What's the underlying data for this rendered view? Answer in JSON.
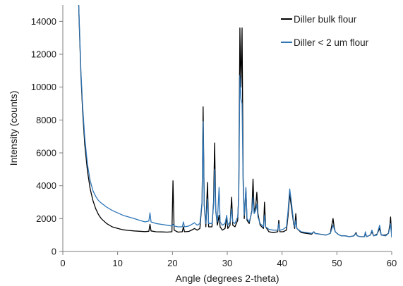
{
  "chart_data": {
    "type": "line",
    "title": "",
    "xlabel": "Angle (degrees 2-theta)",
    "ylabel": "Intensity (counts)",
    "xlim": [
      0,
      60
    ],
    "ylim": [
      0,
      15000
    ],
    "x_ticks": [
      0,
      10,
      20,
      30,
      40,
      50,
      60
    ],
    "y_ticks": [
      0,
      2000,
      4000,
      6000,
      8000,
      10000,
      12000,
      14000
    ],
    "grid": false,
    "legend_position": "top-right",
    "series": [
      {
        "name": "Diller bulk flour",
        "color": "#000000",
        "points": [
          [
            2.9,
            15000
          ],
          [
            3.0,
            13800
          ],
          [
            3.3,
            10800
          ],
          [
            3.6,
            8600
          ],
          [
            4.0,
            6500
          ],
          [
            4.5,
            4900
          ],
          [
            5.0,
            3800
          ],
          [
            5.5,
            3100
          ],
          [
            6.0,
            2600
          ],
          [
            6.5,
            2250
          ],
          [
            7.0,
            2000
          ],
          [
            8.0,
            1700
          ],
          [
            9.0,
            1500
          ],
          [
            10.0,
            1400
          ],
          [
            11.0,
            1320
          ],
          [
            12.0,
            1280
          ],
          [
            13.0,
            1250
          ],
          [
            14.0,
            1230
          ],
          [
            15.0,
            1210
          ],
          [
            15.7,
            1230
          ],
          [
            15.9,
            1650
          ],
          [
            16.1,
            1250
          ],
          [
            17.0,
            1200
          ],
          [
            18.0,
            1190
          ],
          [
            19.0,
            1180
          ],
          [
            19.9,
            1200
          ],
          [
            20.1,
            4300
          ],
          [
            20.3,
            1300
          ],
          [
            21.0,
            1180
          ],
          [
            21.8,
            1200
          ],
          [
            22.0,
            1500
          ],
          [
            22.2,
            1200
          ],
          [
            23.0,
            1220
          ],
          [
            23.8,
            1350
          ],
          [
            24.0,
            1400
          ],
          [
            24.5,
            1300
          ],
          [
            25.0,
            1400
          ],
          [
            25.4,
            3000
          ],
          [
            25.6,
            8800
          ],
          [
            25.8,
            2800
          ],
          [
            26.1,
            1500
          ],
          [
            26.4,
            4200
          ],
          [
            26.6,
            1500
          ],
          [
            27.2,
            1500
          ],
          [
            27.5,
            3000
          ],
          [
            27.7,
            6600
          ],
          [
            27.9,
            2500
          ],
          [
            28.2,
            1600
          ],
          [
            28.5,
            2200
          ],
          [
            28.7,
            1500
          ],
          [
            29.1,
            1300
          ],
          [
            29.6,
            1400
          ],
          [
            29.9,
            2100
          ],
          [
            30.1,
            1400
          ],
          [
            30.5,
            1600
          ],
          [
            30.8,
            3300
          ],
          [
            31.0,
            1600
          ],
          [
            31.4,
            1500
          ],
          [
            31.9,
            1900
          ],
          [
            32.1,
            3500
          ],
          [
            32.3,
            13600
          ],
          [
            32.5,
            10000
          ],
          [
            32.7,
            13600
          ],
          [
            32.9,
            4500
          ],
          [
            33.1,
            2000
          ],
          [
            33.4,
            3800
          ],
          [
            33.6,
            1900
          ],
          [
            34.0,
            1700
          ],
          [
            34.5,
            2500
          ],
          [
            34.7,
            4400
          ],
          [
            34.9,
            2400
          ],
          [
            35.2,
            2800
          ],
          [
            35.4,
            3600
          ],
          [
            35.6,
            2300
          ],
          [
            36.0,
            1600
          ],
          [
            36.6,
            1400
          ],
          [
            36.8,
            3000
          ],
          [
            37.0,
            1500
          ],
          [
            37.6,
            1200
          ],
          [
            38.4,
            1150
          ],
          [
            39.2,
            1200
          ],
          [
            39.4,
            1900
          ],
          [
            39.6,
            1200
          ],
          [
            40.2,
            1200
          ],
          [
            40.8,
            1300
          ],
          [
            41.1,
            2200
          ],
          [
            41.4,
            3500
          ],
          [
            41.7,
            2700
          ],
          [
            42.1,
            1700
          ],
          [
            42.3,
            1400
          ],
          [
            42.5,
            2300
          ],
          [
            42.7,
            1400
          ],
          [
            43.5,
            1150
          ],
          [
            44.5,
            1100
          ],
          [
            45.4,
            1050
          ],
          [
            45.8,
            1200
          ],
          [
            46.0,
            1100
          ],
          [
            47.0,
            1050
          ],
          [
            48.0,
            1000
          ],
          [
            48.8,
            1100
          ],
          [
            49.3,
            2000
          ],
          [
            49.5,
            1500
          ],
          [
            49.7,
            1200
          ],
          [
            50.2,
            1050
          ],
          [
            50.8,
            950
          ],
          [
            51.5,
            950
          ],
          [
            52.3,
            900
          ],
          [
            53.1,
            950
          ],
          [
            53.5,
            1150
          ],
          [
            53.7,
            950
          ],
          [
            54.3,
            900
          ],
          [
            55.0,
            900
          ],
          [
            55.2,
            1100
          ],
          [
            55.4,
            900
          ],
          [
            56.1,
            1000
          ],
          [
            56.4,
            1200
          ],
          [
            56.7,
            950
          ],
          [
            57.3,
            1050
          ],
          [
            57.8,
            1400
          ],
          [
            58.1,
            1000
          ],
          [
            58.9,
            1000
          ],
          [
            59.4,
            1100
          ],
          [
            59.7,
            1700
          ],
          [
            59.8,
            2100
          ],
          [
            60.0,
            900
          ]
        ]
      },
      {
        "name": "Diller < 2 um flour",
        "color": "#2e75b6",
        "points": [
          [
            2.9,
            15000
          ],
          [
            3.0,
            14000
          ],
          [
            3.3,
            11000
          ],
          [
            3.6,
            8900
          ],
          [
            4.0,
            6900
          ],
          [
            4.5,
            5300
          ],
          [
            5.0,
            4300
          ],
          [
            5.5,
            3700
          ],
          [
            6.0,
            3350
          ],
          [
            6.5,
            3100
          ],
          [
            7.0,
            2950
          ],
          [
            8.0,
            2700
          ],
          [
            9.0,
            2500
          ],
          [
            10.0,
            2350
          ],
          [
            11.0,
            2200
          ],
          [
            12.0,
            2100
          ],
          [
            13.0,
            2000
          ],
          [
            14.0,
            1900
          ],
          [
            15.0,
            1800
          ],
          [
            15.7,
            1850
          ],
          [
            15.9,
            2350
          ],
          [
            16.1,
            1800
          ],
          [
            17.0,
            1700
          ],
          [
            18.0,
            1650
          ],
          [
            19.0,
            1600
          ],
          [
            19.9,
            1550
          ],
          [
            20.1,
            1650
          ],
          [
            20.3,
            1550
          ],
          [
            21.0,
            1500
          ],
          [
            21.8,
            1500
          ],
          [
            22.0,
            1800
          ],
          [
            22.2,
            1500
          ],
          [
            23.0,
            1550
          ],
          [
            23.8,
            1700
          ],
          [
            24.0,
            1750
          ],
          [
            24.5,
            1600
          ],
          [
            25.0,
            1700
          ],
          [
            25.4,
            3000
          ],
          [
            25.6,
            7900
          ],
          [
            25.8,
            2800
          ],
          [
            26.1,
            1700
          ],
          [
            26.4,
            3200
          ],
          [
            26.6,
            1700
          ],
          [
            27.2,
            1700
          ],
          [
            27.5,
            2800
          ],
          [
            27.7,
            5000
          ],
          [
            27.9,
            2400
          ],
          [
            28.2,
            1800
          ],
          [
            28.5,
            3900
          ],
          [
            28.7,
            1800
          ],
          [
            29.1,
            1600
          ],
          [
            29.6,
            1700
          ],
          [
            29.9,
            2200
          ],
          [
            30.1,
            1600
          ],
          [
            30.5,
            1800
          ],
          [
            30.8,
            2600
          ],
          [
            31.0,
            1800
          ],
          [
            31.4,
            1700
          ],
          [
            31.9,
            2100
          ],
          [
            32.1,
            3400
          ],
          [
            32.3,
            10700
          ],
          [
            32.5,
            9300
          ],
          [
            32.7,
            9000
          ],
          [
            32.9,
            4100
          ],
          [
            33.1,
            2200
          ],
          [
            33.4,
            3900
          ],
          [
            33.6,
            2000
          ],
          [
            34.0,
            1800
          ],
          [
            34.5,
            2400
          ],
          [
            34.7,
            3300
          ],
          [
            34.9,
            2300
          ],
          [
            35.2,
            2500
          ],
          [
            35.4,
            2900
          ],
          [
            35.6,
            2100
          ],
          [
            36.0,
            1700
          ],
          [
            36.6,
            1500
          ],
          [
            36.8,
            2200
          ],
          [
            37.0,
            1500
          ],
          [
            37.6,
            1350
          ],
          [
            38.4,
            1300
          ],
          [
            39.2,
            1300
          ],
          [
            39.4,
            1700
          ],
          [
            39.6,
            1300
          ],
          [
            40.2,
            1350
          ],
          [
            40.8,
            1500
          ],
          [
            41.1,
            2500
          ],
          [
            41.4,
            3800
          ],
          [
            41.7,
            3000
          ],
          [
            42.1,
            1800
          ],
          [
            42.3,
            1500
          ],
          [
            42.5,
            1900
          ],
          [
            42.7,
            1400
          ],
          [
            43.5,
            1200
          ],
          [
            44.5,
            1150
          ],
          [
            45.4,
            1100
          ],
          [
            45.8,
            1200
          ],
          [
            46.0,
            1100
          ],
          [
            47.0,
            1050
          ],
          [
            48.0,
            1000
          ],
          [
            48.8,
            1100
          ],
          [
            49.3,
            1600
          ],
          [
            49.5,
            1400
          ],
          [
            49.7,
            1200
          ],
          [
            50.2,
            1050
          ],
          [
            50.8,
            950
          ],
          [
            51.5,
            950
          ],
          [
            52.3,
            900
          ],
          [
            53.1,
            950
          ],
          [
            53.5,
            1100
          ],
          [
            53.7,
            950
          ],
          [
            54.3,
            900
          ],
          [
            55.0,
            900
          ],
          [
            55.2,
            1200
          ],
          [
            55.4,
            900
          ],
          [
            56.1,
            1000
          ],
          [
            56.4,
            1300
          ],
          [
            56.7,
            950
          ],
          [
            57.3,
            1000
          ],
          [
            57.8,
            1600
          ],
          [
            58.1,
            1000
          ],
          [
            58.9,
            950
          ],
          [
            59.4,
            1100
          ],
          [
            59.7,
            1500
          ],
          [
            59.8,
            1700
          ],
          [
            60.0,
            850
          ]
        ]
      }
    ]
  }
}
